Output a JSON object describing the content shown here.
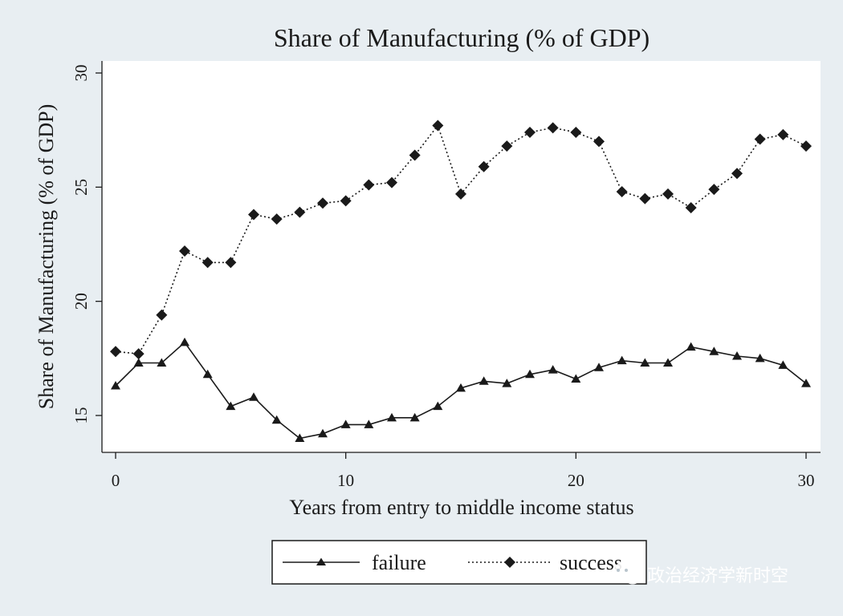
{
  "chart_data": {
    "type": "line",
    "title": "Share of Manufacturing (% of GDP)",
    "xlabel": "Years from entry to middle income status",
    "ylabel": "Share of Manufacturing (% of GDP)",
    "xlim": [
      0,
      30
    ],
    "ylim": [
      13.5,
      30.5
    ],
    "xticks": [
      0,
      10,
      20,
      30
    ],
    "yticks": [
      15,
      20,
      25,
      30
    ],
    "x": [
      0,
      1,
      2,
      3,
      4,
      5,
      6,
      7,
      8,
      9,
      10,
      11,
      12,
      13,
      14,
      15,
      16,
      17,
      18,
      19,
      20,
      21,
      22,
      23,
      24,
      25,
      26,
      27,
      28,
      29,
      30
    ],
    "series": [
      {
        "name": "failure",
        "marker": "triangle",
        "line_style": "solid",
        "values": [
          16.3,
          17.3,
          17.3,
          18.2,
          16.8,
          15.4,
          15.8,
          14.8,
          14.0,
          14.2,
          14.6,
          14.6,
          14.9,
          14.9,
          15.4,
          16.2,
          16.5,
          16.4,
          16.8,
          17.0,
          16.6,
          17.1,
          17.4,
          17.3,
          17.3,
          18.0,
          17.8,
          17.6,
          17.5,
          17.2,
          16.4
        ]
      },
      {
        "name": "success",
        "marker": "diamond",
        "line_style": "dotted",
        "values": [
          17.8,
          17.7,
          19.4,
          22.2,
          21.7,
          21.7,
          23.8,
          23.6,
          23.9,
          24.3,
          24.4,
          25.1,
          25.2,
          26.4,
          27.7,
          24.7,
          25.9,
          26.8,
          27.4,
          27.6,
          27.4,
          27.0,
          24.8,
          24.5,
          24.7,
          24.1,
          24.9,
          25.6,
          27.1,
          27.3,
          26.8
        ]
      }
    ],
    "legend_position": "bottom",
    "grid": false
  },
  "watermark": {
    "text": "政治经济学新时空",
    "icon": "wechat-icon"
  },
  "colors": {
    "background": "#e8eef2",
    "plot_background": "#ffffff",
    "series_line": "#1a1a1a",
    "watermark_text": "#ffffff"
  }
}
